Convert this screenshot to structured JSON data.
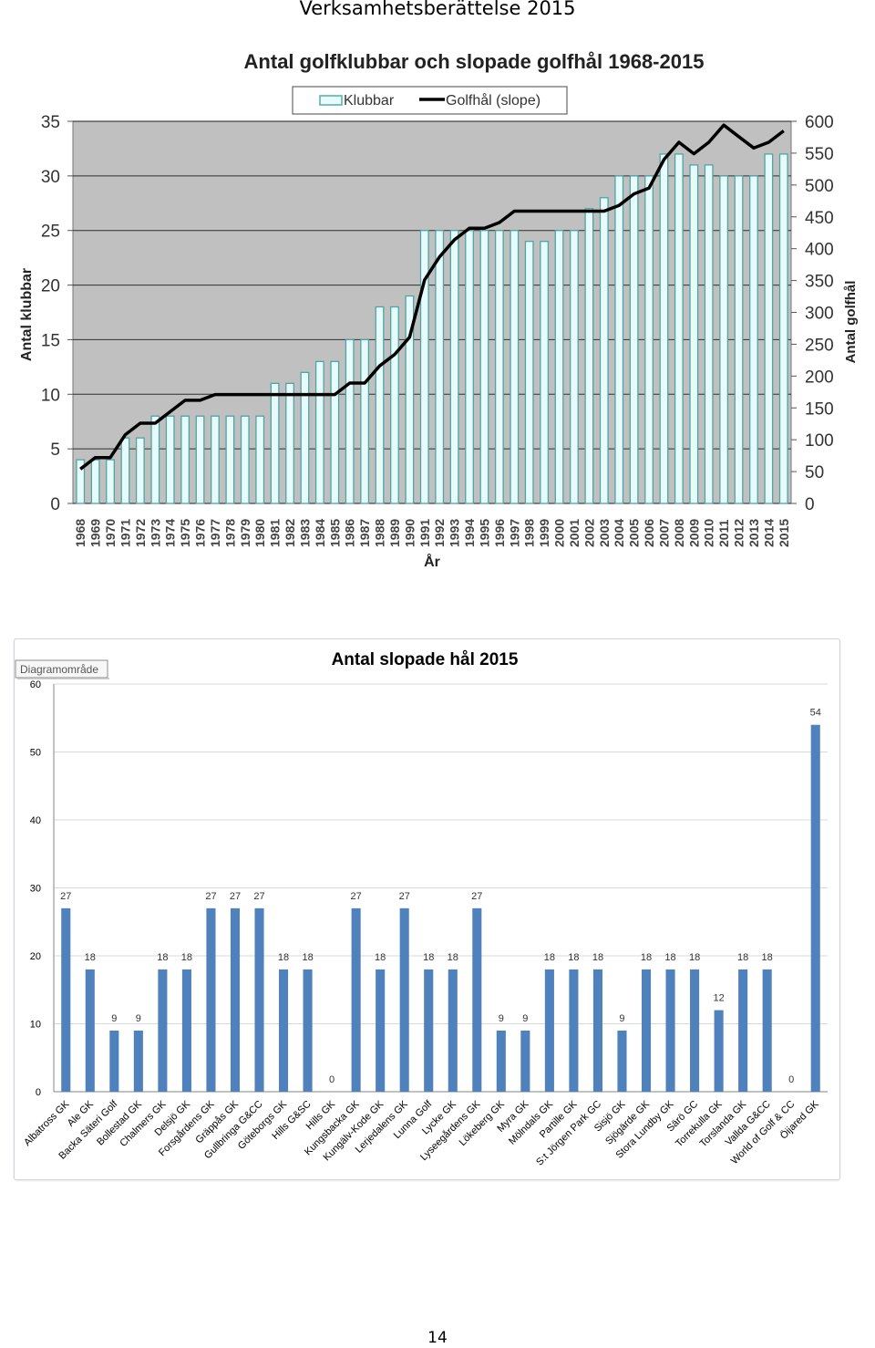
{
  "page": {
    "header": "Verksamhetsberättelse 2015",
    "page_number": "14"
  },
  "colors": {
    "plot_bg": "#c0c0c0",
    "bar_fill": "#e8fbfb",
    "bar_stroke": "#4fa4a4",
    "line": "#000000",
    "bar2": "#4f81bd",
    "gridline2": "#d9d9d9"
  },
  "chart_data": [
    {
      "type": "bar",
      "title": "Antal golfklubbar och slopade golfhål 1968-2015",
      "xlabel": "År",
      "ylabel": "Antal klubbar",
      "y2label": "Antal golfhål",
      "legend": {
        "position": "top-center",
        "entries": [
          "Klubbar",
          "Golfhål (slope)"
        ]
      },
      "ylim": [
        0,
        35
      ],
      "y2lim": [
        0,
        600
      ],
      "yticks": [
        "0",
        "5",
        "10",
        "15",
        "20",
        "25",
        "30",
        "35"
      ],
      "y2ticks": [
        "0",
        "50",
        "100",
        "150",
        "200",
        "250",
        "300",
        "350",
        "400",
        "450",
        "500",
        "550",
        "600"
      ],
      "grid": "horizontal",
      "categories": [
        "1968",
        "1969",
        "1970",
        "1971",
        "1972",
        "1973",
        "1974",
        "1975",
        "1976",
        "1977",
        "1978",
        "1979",
        "1980",
        "1981",
        "1982",
        "1983",
        "1984",
        "1985",
        "1986",
        "1987",
        "1988",
        "1989",
        "1990",
        "1991",
        "1992",
        "1993",
        "1994",
        "1995",
        "1996",
        "1997",
        "1998",
        "1999",
        "2000",
        "2001",
        "2002",
        "2003",
        "2004",
        "2005",
        "2006",
        "2007",
        "2008",
        "2009",
        "2010",
        "2011",
        "2012",
        "2013",
        "2014",
        "2015"
      ],
      "series": [
        {
          "name": "Klubbar",
          "type": "bar",
          "axis": "left",
          "values": [
            4,
            4,
            4,
            6,
            6,
            8,
            8,
            8,
            8,
            8,
            8,
            8,
            8,
            11,
            11,
            12,
            13,
            13,
            15,
            15,
            18,
            18,
            19,
            25,
            25,
            25,
            25,
            25,
            25,
            25,
            24,
            24,
            25,
            25,
            27,
            28,
            30,
            30,
            30,
            32,
            32,
            31,
            31,
            30,
            30,
            30,
            32,
            32
          ]
        },
        {
          "name": "Golfhål (slope)",
          "type": "line",
          "axis": "right",
          "values": [
            54,
            72,
            72,
            108,
            126,
            126,
            144,
            162,
            162,
            171,
            171,
            171,
            171,
            171,
            171,
            171,
            171,
            171,
            189,
            189,
            216,
            234,
            261,
            351,
            387,
            414,
            432,
            432,
            441,
            459,
            459,
            459,
            459,
            459,
            459,
            459,
            468,
            486,
            495,
            540,
            567,
            549,
            567,
            594,
            576,
            558,
            567,
            585
          ]
        }
      ]
    },
    {
      "type": "bar",
      "title": "Antal slopade  hål 2015",
      "tooltip": "Diagramområde",
      "ylim": [
        0,
        60
      ],
      "yticks": [
        "0",
        "10",
        "20",
        "30",
        "40",
        "50",
        "60"
      ],
      "grid": "horizontal",
      "categories": [
        "Albatross GK",
        "Ale GK",
        "Backa Säteri Golf",
        "Bollestad GK",
        "Chalmers GK",
        "Delsjö GK",
        "Forsgårdens GK",
        "Gräppås GK",
        "Gullbringa G&CC",
        "Göteborgs GK",
        "Hills G&SC",
        "Hills GK",
        "Kungsbacka GK",
        "Kungälv-Kode GK",
        "Lerjedalens GK",
        "Lunna Golf",
        "Lycke GK",
        "Lyseegårdens GK",
        "Lökeberg GK",
        "Myra GK",
        "Mölndals GK",
        "Partille GK",
        "S:t Jörgen Park GC",
        "Sisjö GK",
        "Sjögärde GK",
        "Stora Lundby GK",
        "Särö GC",
        "Torrekulla GK",
        "Torslanda GK",
        "Vallda G&CC",
        "World of Golf & CC",
        "Öijared GK"
      ],
      "values": [
        27,
        18,
        9,
        9,
        18,
        18,
        27,
        27,
        27,
        18,
        18,
        0,
        27,
        18,
        27,
        18,
        18,
        27,
        9,
        9,
        18,
        18,
        18,
        9,
        18,
        18,
        18,
        12,
        18,
        18,
        0,
        54
      ],
      "data_labels": [
        "27",
        "18",
        "9",
        "9",
        "18",
        "18",
        "27",
        "27",
        "27",
        "18",
        "18",
        "0",
        "27",
        "18",
        "27",
        "18",
        "18",
        "27",
        "9",
        "9",
        "18",
        "18",
        "18",
        "9",
        "18",
        "18",
        "18",
        "12",
        "18",
        "18",
        "0",
        "54"
      ]
    }
  ]
}
